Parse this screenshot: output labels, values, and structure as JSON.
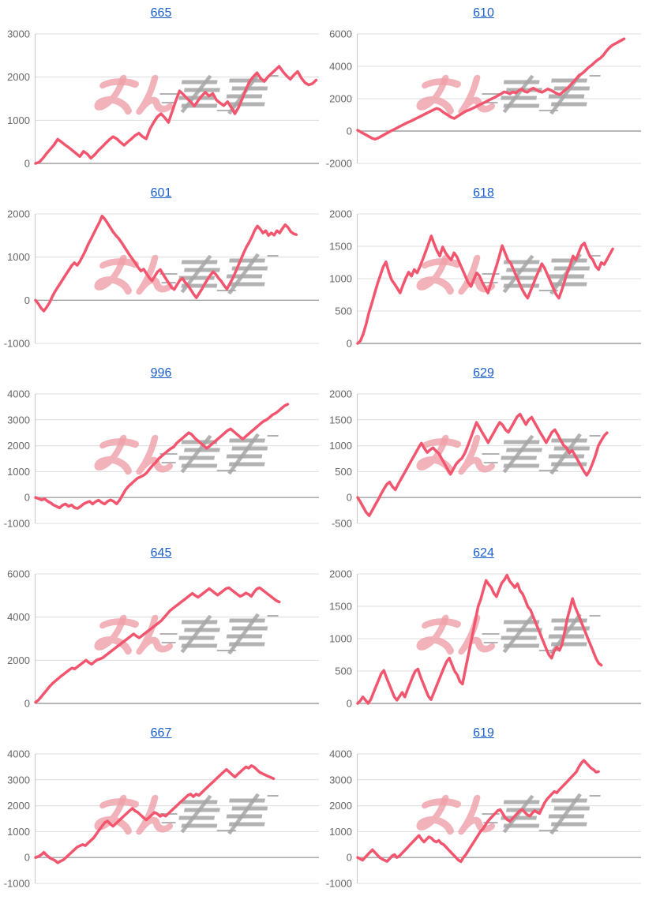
{
  "page": {
    "background": "#ffffff"
  },
  "colors": {
    "line": "#f2566f",
    "title_link": "#1a5fcc",
    "grid": "#dcdcdc",
    "zero_line": "#a0a0a0",
    "axis_line": "#c8c8c8",
    "axis_label": "#666666",
    "watermark_pink": "#ef9fa7",
    "watermark_gray": "#a5a5a5"
  },
  "icons": {
    "watermark": "brand-logo-watermark"
  },
  "chart_data": [
    {
      "type": "line",
      "title": "665",
      "xlabel": "",
      "ylabel": "",
      "y_ticks": [
        3000,
        2000,
        1000,
        0
      ],
      "ylim": [
        0,
        3000
      ],
      "x_span": 0.99,
      "legend": "none",
      "grid": "horizontal",
      "values": [
        0,
        30,
        120,
        230,
        330,
        430,
        560,
        500,
        430,
        370,
        300,
        230,
        160,
        280,
        220,
        120,
        200,
        300,
        380,
        470,
        550,
        620,
        570,
        490,
        420,
        500,
        570,
        650,
        700,
        620,
        570,
        800,
        950,
        1080,
        1150,
        1060,
        950,
        1200,
        1450,
        1680,
        1600,
        1510,
        1430,
        1330,
        1450,
        1560,
        1650,
        1560,
        1620,
        1470,
        1400,
        1340,
        1430,
        1300,
        1150,
        1300,
        1500,
        1720,
        1900,
        2010,
        2100,
        1970,
        1900,
        2010,
        2090,
        2170,
        2250,
        2130,
        2030,
        1950,
        2050,
        2130,
        1980,
        1870,
        1820,
        1850,
        1930
      ]
    },
    {
      "type": "line",
      "title": "610",
      "xlabel": "",
      "ylabel": "",
      "y_ticks": [
        6000,
        4000,
        2000,
        0,
        -2000
      ],
      "ylim": [
        -2000,
        6000
      ],
      "x_span": 0.94,
      "legend": "none",
      "grid": "horizontal",
      "values": [
        50,
        -50,
        -150,
        -250,
        -350,
        -450,
        -500,
        -430,
        -330,
        -230,
        -130,
        -30,
        60,
        150,
        250,
        340,
        430,
        520,
        600,
        690,
        780,
        870,
        960,
        1050,
        1140,
        1230,
        1320,
        1400,
        1340,
        1200,
        1080,
        960,
        850,
        780,
        900,
        1010,
        1120,
        1230,
        1300,
        1380,
        1470,
        1560,
        1650,
        1740,
        1830,
        1920,
        2010,
        2100,
        2200,
        2300,
        2420,
        2380,
        2300,
        2420,
        2350,
        2500,
        2600,
        2450,
        2400,
        2550,
        2650,
        2550,
        2450,
        2400,
        2500,
        2600,
        2520,
        2420,
        2320,
        2250,
        2400,
        2550,
        2700,
        2900,
        3100,
        3300,
        3480,
        3600,
        3780,
        3950,
        4080,
        4250,
        4400,
        4520,
        4700,
        4950,
        5150,
        5300,
        5400,
        5500,
        5600,
        5700
      ]
    },
    {
      "type": "line",
      "title": "601",
      "xlabel": "",
      "ylabel": "",
      "y_ticks": [
        2000,
        1000,
        0,
        -1000
      ],
      "ylim": [
        -1000,
        2000
      ],
      "x_span": 0.92,
      "legend": "none",
      "grid": "horizontal",
      "values": [
        0,
        -80,
        -180,
        -250,
        -160,
        -60,
        80,
        200,
        300,
        400,
        500,
        600,
        700,
        800,
        870,
        810,
        900,
        1020,
        1150,
        1300,
        1420,
        1550,
        1680,
        1800,
        1950,
        1880,
        1780,
        1680,
        1580,
        1500,
        1430,
        1340,
        1240,
        1140,
        1040,
        950,
        860,
        760,
        680,
        720,
        620,
        520,
        450,
        560,
        660,
        710,
        600,
        500,
        400,
        300,
        250,
        360,
        460,
        510,
        410,
        340,
        240,
        140,
        60,
        160,
        260,
        380,
        480,
        580,
        660,
        600,
        510,
        440,
        340,
        260,
        380,
        500,
        640,
        790,
        940,
        1090,
        1230,
        1340,
        1470,
        1620,
        1720,
        1650,
        1560,
        1610,
        1500,
        1560,
        1510,
        1610,
        1560,
        1660,
        1750,
        1690,
        1590,
        1540,
        1520
      ]
    },
    {
      "type": "line",
      "title": "618",
      "xlabel": "",
      "ylabel": "",
      "y_ticks": [
        2000,
        1500,
        1000,
        500,
        0
      ],
      "ylim": [
        0,
        2000
      ],
      "x_span": 0.9,
      "legend": "none",
      "grid": "horizontal",
      "values": [
        0,
        40,
        150,
        300,
        480,
        620,
        770,
        920,
        1050,
        1180,
        1260,
        1100,
        980,
        920,
        850,
        780,
        900,
        1010,
        1100,
        1040,
        1140,
        1090,
        1190,
        1300,
        1420,
        1540,
        1660,
        1540,
        1430,
        1350,
        1490,
        1400,
        1340,
        1290,
        1400,
        1340,
        1240,
        1140,
        1040,
        940,
        880,
        990,
        1090,
        1040,
        940,
        860,
        780,
        920,
        1060,
        1200,
        1350,
        1510,
        1400,
        1290,
        1240,
        1140,
        1040,
        940,
        840,
        760,
        700,
        810,
        920,
        1030,
        1130,
        1230,
        1160,
        1060,
        960,
        860,
        760,
        700,
        820,
        960,
        1100,
        1210,
        1350,
        1290,
        1400,
        1510,
        1550,
        1440,
        1340,
        1290,
        1190,
        1140,
        1250,
        1220,
        1300,
        1380,
        1460
      ]
    },
    {
      "type": "line",
      "title": "996",
      "xlabel": "",
      "ylabel": "",
      "y_ticks": [
        4000,
        3000,
        2000,
        1000,
        0,
        -1000
      ],
      "ylim": [
        -1000,
        4000
      ],
      "x_span": 0.89,
      "legend": "none",
      "grid": "horizontal",
      "values": [
        0,
        -40,
        -90,
        -50,
        -140,
        -200,
        -290,
        -340,
        -400,
        -300,
        -250,
        -340,
        -290,
        -390,
        -420,
        -340,
        -250,
        -190,
        -150,
        -250,
        -160,
        -100,
        -190,
        -250,
        -150,
        -90,
        -150,
        -240,
        -100,
        100,
        300,
        440,
        540,
        650,
        750,
        800,
        860,
        950,
        1100,
        1240,
        1350,
        1500,
        1600,
        1700,
        1800,
        1890,
        1950,
        2100,
        2200,
        2300,
        2400,
        2500,
        2440,
        2300,
        2200,
        2100,
        2000,
        1900,
        1990,
        2090,
        2190,
        2290,
        2390,
        2490,
        2590,
        2650,
        2550,
        2450,
        2350,
        2260,
        2360,
        2460,
        2560,
        2660,
        2760,
        2860,
        2950,
        3010,
        3100,
        3200,
        3260,
        3350,
        3450,
        3550,
        3600
      ]
    },
    {
      "type": "line",
      "title": "629",
      "xlabel": "",
      "ylabel": "",
      "y_ticks": [
        2000,
        1500,
        1000,
        500,
        0,
        -500
      ],
      "ylim": [
        -500,
        2000
      ],
      "x_span": 0.88,
      "legend": "none",
      "grid": "horizontal",
      "values": [
        0,
        -90,
        -190,
        -290,
        -350,
        -250,
        -150,
        -50,
        60,
        160,
        250,
        300,
        210,
        150,
        260,
        360,
        460,
        560,
        660,
        760,
        860,
        960,
        1050,
        950,
        870,
        920,
        960,
        900,
        850,
        750,
        650,
        550,
        450,
        550,
        650,
        710,
        760,
        860,
        1000,
        1150,
        1300,
        1450,
        1350,
        1250,
        1160,
        1060,
        1160,
        1260,
        1360,
        1450,
        1400,
        1310,
        1260,
        1360,
        1460,
        1560,
        1610,
        1510,
        1410,
        1500,
        1550,
        1450,
        1350,
        1250,
        1160,
        1060,
        1160,
        1260,
        1310,
        1210,
        1110,
        1010,
        960,
        860,
        910,
        810,
        710,
        610,
        510,
        430,
        520,
        660,
        810,
        1000,
        1100,
        1190,
        1250
      ]
    },
    {
      "type": "line",
      "title": "645",
      "xlabel": "",
      "ylabel": "",
      "y_ticks": [
        6000,
        4000,
        2000,
        0
      ],
      "ylim": [
        0,
        6000
      ],
      "x_span": 0.86,
      "legend": "none",
      "grid": "horizontal",
      "values": [
        50,
        150,
        300,
        460,
        620,
        780,
        920,
        1030,
        1140,
        1250,
        1350,
        1450,
        1550,
        1640,
        1600,
        1700,
        1800,
        1900,
        2000,
        1900,
        1820,
        1920,
        2020,
        2060,
        2120,
        2220,
        2320,
        2420,
        2520,
        2620,
        2720,
        2820,
        2920,
        3020,
        3120,
        3220,
        3120,
        3040,
        3140,
        3240,
        3340,
        3440,
        3540,
        3640,
        3740,
        3850,
        4000,
        4150,
        4300,
        4400,
        4500,
        4600,
        4700,
        4800,
        4900,
        5000,
        5100,
        5000,
        4920,
        5020,
        5120,
        5220,
        5320,
        5220,
        5120,
        5020,
        5120,
        5220,
        5320,
        5360,
        5260,
        5160,
        5060,
        4960,
        5020,
        5120,
        5060,
        4960,
        5160,
        5310,
        5360,
        5260,
        5160,
        5060,
        4960,
        4860,
        4760,
        4700
      ]
    },
    {
      "type": "line",
      "title": "624",
      "xlabel": "",
      "ylabel": "",
      "y_ticks": [
        2000,
        1500,
        1000,
        500,
        0
      ],
      "ylim": [
        0,
        2000
      ],
      "x_span": 0.86,
      "legend": "none",
      "grid": "horizontal",
      "values": [
        0,
        40,
        100,
        50,
        0,
        60,
        160,
        260,
        360,
        460,
        510,
        400,
        300,
        200,
        100,
        50,
        110,
        170,
        100,
        210,
        310,
        410,
        500,
        530,
        410,
        310,
        210,
        110,
        60,
        160,
        260,
        360,
        460,
        560,
        650,
        700,
        600,
        500,
        440,
        340,
        300,
        500,
        700,
        900,
        1100,
        1300,
        1500,
        1610,
        1760,
        1900,
        1840,
        1790,
        1700,
        1650,
        1760,
        1860,
        1910,
        1980,
        1890,
        1840,
        1790,
        1850,
        1740,
        1690,
        1590,
        1490,
        1440,
        1340,
        1240,
        1140,
        1040,
        940,
        840,
        750,
        700,
        810,
        870,
        820,
        910,
        1110,
        1310,
        1460,
        1620,
        1490,
        1390,
        1290,
        1190,
        1090,
        990,
        890,
        790,
        690,
        620,
        590
      ]
    },
    {
      "type": "line",
      "title": "667",
      "xlabel": "",
      "ylabel": "",
      "y_ticks": [
        4000,
        3000,
        2000,
        1000,
        0,
        -1000
      ],
      "ylim": [
        -1000,
        4000
      ],
      "x_span": 0.84,
      "legend": "none",
      "grid": "horizontal",
      "values": [
        0,
        40,
        100,
        200,
        90,
        0,
        -60,
        -110,
        -200,
        -140,
        -90,
        0,
        100,
        200,
        300,
        400,
        450,
        500,
        460,
        560,
        660,
        760,
        910,
        1060,
        1210,
        1350,
        1410,
        1300,
        1210,
        1310,
        1410,
        1510,
        1610,
        1710,
        1810,
        1900,
        1800,
        1740,
        1640,
        1540,
        1450,
        1550,
        1650,
        1740,
        1690,
        1590,
        1650,
        1600,
        1700,
        1800,
        1900,
        2000,
        2100,
        2200,
        2300,
        2400,
        2450,
        2350,
        2450,
        2400,
        2500,
        2610,
        2710,
        2810,
        2910,
        3010,
        3110,
        3210,
        3310,
        3400,
        3300,
        3200,
        3110,
        3210,
        3310,
        3410,
        3500,
        3450,
        3550,
        3490,
        3390,
        3290,
        3240,
        3190,
        3140,
        3090,
        3050
      ]
    },
    {
      "type": "line",
      "title": "619",
      "xlabel": "",
      "ylabel": "",
      "y_ticks": [
        4000,
        3000,
        2000,
        1000,
        0,
        -1000
      ],
      "ylim": [
        -1000,
        4000
      ],
      "x_span": 0.85,
      "legend": "none",
      "grid": "horizontal",
      "values": [
        0,
        -50,
        -100,
        0,
        100,
        200,
        300,
        200,
        100,
        0,
        -60,
        -110,
        -150,
        -50,
        60,
        110,
        0,
        60,
        160,
        260,
        360,
        460,
        560,
        660,
        760,
        850,
        700,
        600,
        700,
        800,
        750,
        650,
        600,
        660,
        550,
        500,
        400,
        300,
        200,
        100,
        0,
        -100,
        -160,
        0,
        110,
        260,
        410,
        560,
        710,
        860,
        1010,
        1110,
        1260,
        1400,
        1510,
        1610,
        1710,
        1810,
        1850,
        1700,
        1550,
        1450,
        1400,
        1510,
        1610,
        1710,
        1810,
        1850,
        1750,
        1650,
        1600,
        1710,
        1810,
        1750,
        1700,
        1900,
        2100,
        2250,
        2350,
        2450,
        2550,
        2500,
        2610,
        2710,
        2810,
        2910,
        3010,
        3110,
        3210,
        3310,
        3500,
        3650,
        3750,
        3650,
        3550,
        3450,
        3390,
        3300,
        3320
      ]
    }
  ]
}
